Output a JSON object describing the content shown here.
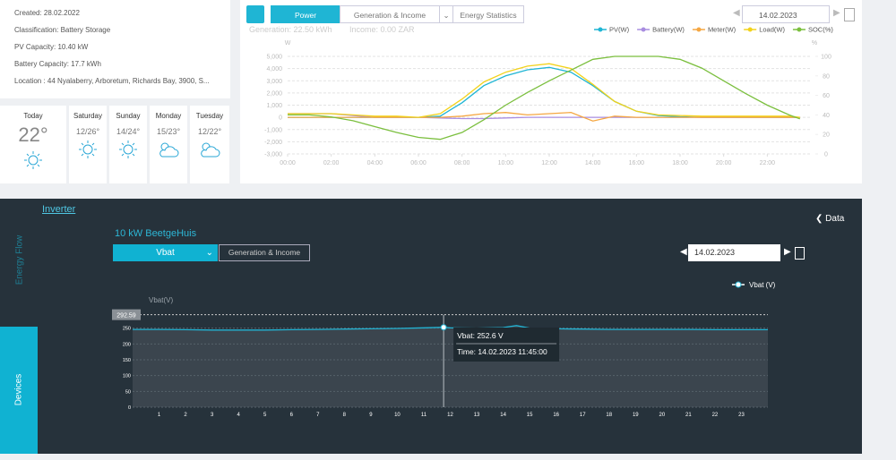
{
  "info": {
    "created": "Created:  28.02.2022",
    "classification": "Classification:  Battery Storage",
    "pv_capacity": "PV Capacity:  10.40 kW",
    "battery_capacity": "Battery Capacity:  17.7 kWh",
    "location": "Location : 44 Nyalaberry, Arboretum, Richards Bay, 3900, S..."
  },
  "weather": [
    {
      "day": "Today",
      "temp": "22°"
    },
    {
      "day": "Saturday",
      "temp": "12/26°"
    },
    {
      "day": "Sunday",
      "temp": "14/24°"
    },
    {
      "day": "Monday",
      "temp": "15/23°"
    },
    {
      "day": "Tuesday",
      "temp": "12/22°"
    }
  ],
  "power_panel": {
    "tabs": [
      "Power",
      "Generation & Income",
      "Energy Statistics"
    ],
    "date": "14.02.2023",
    "generation": "Generation: 22.50 kWh",
    "income": "Income: 0.00 ZAR"
  },
  "power_chart": {
    "type": "line",
    "y_unit": "W",
    "y2_unit": "%",
    "x": [
      0,
      1,
      2,
      3,
      4,
      5,
      6,
      7,
      8,
      9,
      10,
      11,
      12,
      13,
      14,
      15,
      16,
      17,
      18,
      19,
      20,
      21,
      22,
      23,
      23.5
    ],
    "xlim": [
      0,
      24
    ],
    "xticks": [
      {
        "value": 0,
        "label": "00:00"
      },
      {
        "value": 2,
        "label": "02:00"
      },
      {
        "value": 4,
        "label": "04:00"
      },
      {
        "value": 6,
        "label": "06:00"
      },
      {
        "value": 8,
        "label": "08:00"
      },
      {
        "value": 10,
        "label": "10:00"
      },
      {
        "value": 12,
        "label": "12:00"
      },
      {
        "value": 14,
        "label": "14:00"
      },
      {
        "value": 16,
        "label": "16:00"
      },
      {
        "value": 18,
        "label": "18:00"
      },
      {
        "value": 20,
        "label": "20:00"
      },
      {
        "value": 22,
        "label": "22:00"
      }
    ],
    "ylim": [
      -3000,
      5000
    ],
    "yticks": [
      {
        "value": 5000,
        "label": "5,000"
      },
      {
        "value": 4000,
        "label": "4,000"
      },
      {
        "value": 3000,
        "label": "3,000"
      },
      {
        "value": 2000,
        "label": "2,000"
      },
      {
        "value": 1000,
        "label": "1,000"
      },
      0,
      {
        "value": -1000,
        "label": "-1,000"
      },
      {
        "value": -2000,
        "label": "-2,000"
      },
      {
        "value": -3000,
        "label": "-3,000"
      }
    ],
    "y2lim": [
      0,
      100
    ],
    "y2ticks": [
      100,
      80,
      60,
      40,
      20,
      0
    ],
    "grid": true,
    "series": [
      {
        "name": "PV(W)",
        "color": "#1fb5d4",
        "values": [
          0,
          0,
          0,
          0,
          0,
          0,
          0,
          100,
          1200,
          2600,
          3400,
          3900,
          4100,
          3700,
          2600,
          1300,
          500,
          150,
          50,
          0,
          0,
          0,
          0,
          0,
          0
        ]
      },
      {
        "name": "Battery(W)",
        "color": "#a98de0",
        "values": [
          300,
          300,
          300,
          150,
          0,
          0,
          0,
          -50,
          -100,
          -100,
          -50,
          0,
          0,
          0,
          0,
          0,
          0,
          0,
          0,
          0,
          0,
          0,
          0,
          0,
          0
        ]
      },
      {
        "name": "Meter(W)",
        "color": "#f5a742",
        "values": [
          0,
          0,
          0,
          0,
          0,
          0,
          0,
          0,
          100,
          300,
          400,
          200,
          300,
          400,
          -300,
          100,
          0,
          0,
          0,
          0,
          0,
          0,
          0,
          0,
          0
        ]
      },
      {
        "name": "Load(W)",
        "color": "#f2d21b",
        "values": [
          300,
          300,
          300,
          200,
          100,
          100,
          0,
          300,
          1500,
          2900,
          3700,
          4200,
          4400,
          4000,
          2700,
          1300,
          500,
          200,
          150,
          100,
          100,
          100,
          100,
          100,
          0
        ]
      },
      {
        "name": "SOC(%)",
        "color": "#7bbf3e",
        "axis": "y2",
        "values": [
          40,
          40,
          38,
          34,
          28,
          22,
          17,
          15,
          22,
          35,
          50,
          63,
          75,
          86,
          97,
          100,
          100,
          100,
          97,
          88,
          75,
          62,
          50,
          40,
          36
        ]
      }
    ]
  },
  "device_panel": {
    "link": "Inverter",
    "back": "Data",
    "tabs": [
      "Energy Flow",
      "Devices"
    ],
    "device": "10 kW BeetgeHuis",
    "selector": "Vbat",
    "other_tab": "Generation & Income",
    "date": "14.02.2023"
  },
  "vbat_chart": {
    "type": "line",
    "y_label": "Vbat(V)",
    "x": [
      0,
      1,
      2,
      3,
      4,
      5,
      6,
      7,
      8,
      9,
      10,
      11,
      11.75,
      12,
      13,
      14,
      14.5,
      15,
      16,
      17,
      18,
      19,
      20,
      21,
      22,
      23,
      24
    ],
    "xlim": [
      0,
      24
    ],
    "xticks": [
      1,
      2,
      3,
      4,
      5,
      6,
      7,
      8,
      9,
      10,
      11,
      12,
      13,
      14,
      15,
      16,
      17,
      18,
      19,
      20,
      21,
      22,
      23
    ],
    "ylim": [
      0,
      300
    ],
    "yticks": [
      0,
      50,
      100,
      150,
      200,
      250
    ],
    "grid": true,
    "max_line": 292.59,
    "series": [
      {
        "name": "Vbat  (V)",
        "color": "#21b3d3",
        "values": [
          246,
          246,
          245,
          244,
          244,
          244,
          245,
          246,
          247,
          248,
          249,
          251,
          252.6,
          251,
          250,
          252,
          258,
          250,
          248,
          247,
          246,
          246,
          246,
          246,
          245,
          245,
          245
        ]
      }
    ],
    "tooltip": {
      "x": 11.75,
      "value": 252.6,
      "lines": [
        "Vbat: 252.6 V",
        "Time: 14.02.2023 11:45:00"
      ]
    }
  }
}
